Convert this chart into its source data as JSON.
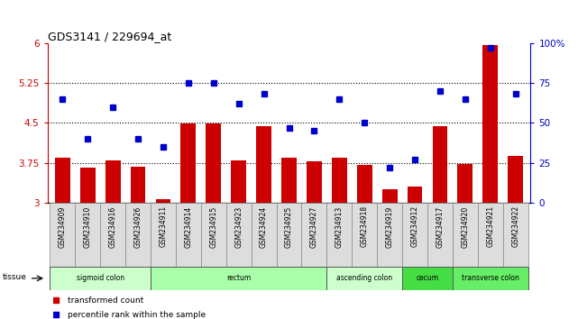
{
  "title": "GDS3141 / 229694_at",
  "samples": [
    "GSM234909",
    "GSM234910",
    "GSM234916",
    "GSM234926",
    "GSM234911",
    "GSM234914",
    "GSM234915",
    "GSM234923",
    "GSM234924",
    "GSM234925",
    "GSM234927",
    "GSM234913",
    "GSM234918",
    "GSM234919",
    "GSM234912",
    "GSM234917",
    "GSM234920",
    "GSM234921",
    "GSM234922"
  ],
  "bar_values": [
    3.85,
    3.65,
    3.8,
    3.68,
    3.07,
    4.48,
    4.48,
    3.8,
    4.44,
    3.85,
    3.77,
    3.85,
    3.7,
    3.25,
    3.3,
    4.44,
    3.72,
    5.97,
    3.88
  ],
  "dot_values": [
    65,
    40,
    60,
    40,
    35,
    75,
    75,
    62,
    68,
    47,
    45,
    65,
    50,
    22,
    27,
    70,
    65,
    97,
    68
  ],
  "tissue_groups": [
    {
      "label": "sigmoid colon",
      "start": 0,
      "end": 3,
      "color": "#ccffcc"
    },
    {
      "label": "rectum",
      "start": 4,
      "end": 10,
      "color": "#aaffaa"
    },
    {
      "label": "ascending colon",
      "start": 11,
      "end": 13,
      "color": "#ccffcc"
    },
    {
      "label": "cecum",
      "start": 14,
      "end": 15,
      "color": "#44dd44"
    },
    {
      "label": "transverse colon",
      "start": 16,
      "end": 18,
      "color": "#66ee66"
    }
  ],
  "ylim_left": [
    3.0,
    6.0
  ],
  "ylim_right": [
    0,
    100
  ],
  "yticks_left": [
    3.0,
    3.75,
    4.5,
    5.25,
    6.0
  ],
  "ytick_labels_left": [
    "3",
    "3.75",
    "4.5",
    "5.25",
    "6"
  ],
  "yticks_right": [
    0,
    25,
    50,
    75,
    100
  ],
  "ytick_labels_right": [
    "0",
    "25",
    "50",
    "75",
    "100%"
  ],
  "hlines": [
    3.75,
    4.5,
    5.25
  ],
  "bar_color": "#cc0000",
  "dot_color": "#0000cc",
  "bar_width": 0.6,
  "bg_color": "#ffffff"
}
